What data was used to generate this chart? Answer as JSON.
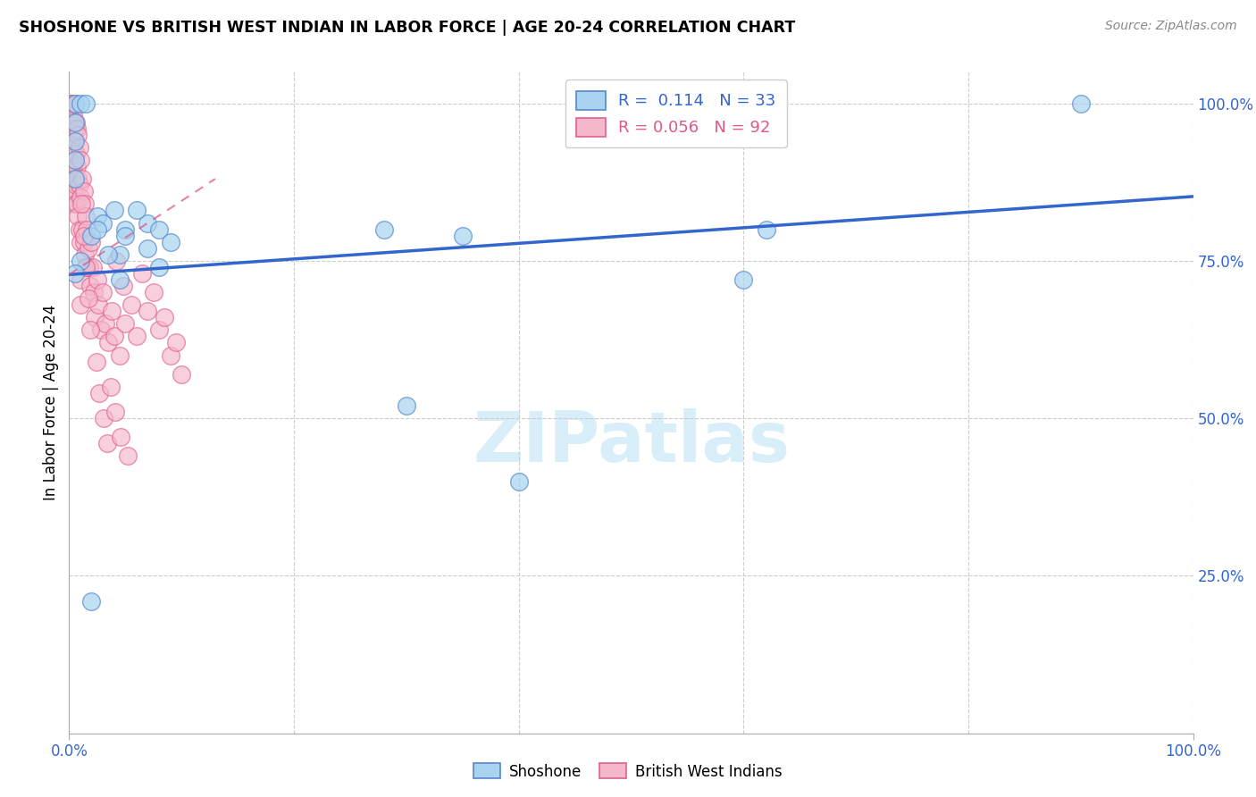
{
  "title": "SHOSHONE VS BRITISH WEST INDIAN IN LABOR FORCE | AGE 20-24 CORRELATION CHART",
  "source": "Source: ZipAtlas.com",
  "ylabel": "In Labor Force | Age 20-24",
  "blue_R": "0.114",
  "blue_N": "33",
  "pink_R": "0.056",
  "pink_N": "92",
  "legend_label_blue": "Shoshone",
  "legend_label_pink": "British West Indians",
  "blue_color": "#a8d4f0",
  "pink_color": "#f5b8cb",
  "blue_edge_color": "#5588cc",
  "pink_edge_color": "#e06090",
  "blue_line_color": "#3366cc",
  "pink_line_color": "#e05888",
  "watermark_color": "#d8eef8",
  "grid_color": "#cccccc",
  "right_tick_color": "#3366cc",
  "xlim": [
    0.0,
    1.0
  ],
  "ylim": [
    0.0,
    1.05
  ],
  "blue_scatter_x": [
    0.005,
    0.005,
    0.005,
    0.005,
    0.005,
    0.01,
    0.01,
    0.015,
    0.02,
    0.025,
    0.03,
    0.04,
    0.045,
    0.05,
    0.07,
    0.08,
    0.09,
    0.05,
    0.06,
    0.07,
    0.08,
    0.025,
    0.035,
    0.045,
    0.28,
    0.35,
    0.3,
    0.6,
    0.62,
    0.9,
    0.4,
    0.005,
    0.02
  ],
  "blue_scatter_y": [
    1.0,
    0.97,
    0.94,
    0.91,
    0.88,
    1.0,
    0.75,
    1.0,
    0.79,
    0.82,
    0.81,
    0.83,
    0.76,
    0.8,
    0.81,
    0.8,
    0.78,
    0.79,
    0.83,
    0.77,
    0.74,
    0.8,
    0.76,
    0.72,
    0.8,
    0.79,
    0.52,
    0.72,
    0.8,
    1.0,
    0.4,
    0.73,
    0.21
  ],
  "pink_scatter_x": [
    0.001,
    0.001,
    0.001,
    0.001,
    0.001,
    0.002,
    0.002,
    0.002,
    0.002,
    0.002,
    0.003,
    0.003,
    0.003,
    0.003,
    0.003,
    0.004,
    0.004,
    0.004,
    0.004,
    0.005,
    0.005,
    0.005,
    0.005,
    0.005,
    0.006,
    0.006,
    0.006,
    0.007,
    0.007,
    0.007,
    0.008,
    0.008,
    0.008,
    0.009,
    0.009,
    0.009,
    0.01,
    0.01,
    0.01,
    0.01,
    0.01,
    0.012,
    0.012,
    0.013,
    0.013,
    0.014,
    0.014,
    0.015,
    0.015,
    0.016,
    0.017,
    0.018,
    0.019,
    0.02,
    0.021,
    0.022,
    0.023,
    0.025,
    0.026,
    0.028,
    0.03,
    0.032,
    0.035,
    0.038,
    0.04,
    0.042,
    0.045,
    0.048,
    0.05,
    0.055,
    0.06,
    0.065,
    0.07,
    0.075,
    0.08,
    0.085,
    0.09,
    0.095,
    0.1,
    0.011,
    0.013,
    0.015,
    0.017,
    0.019,
    0.024,
    0.027,
    0.031,
    0.034,
    0.037,
    0.041,
    0.046,
    0.052
  ],
  "pink_scatter_y": [
    1.0,
    1.0,
    0.97,
    0.94,
    0.91,
    1.0,
    0.97,
    0.94,
    0.91,
    0.88,
    1.0,
    0.97,
    0.93,
    0.89,
    0.85,
    0.98,
    0.94,
    0.9,
    0.86,
    1.0,
    0.96,
    0.92,
    0.88,
    0.84,
    0.97,
    0.92,
    0.87,
    0.96,
    0.9,
    0.84,
    0.95,
    0.88,
    0.82,
    0.93,
    0.87,
    0.8,
    0.91,
    0.85,
    0.78,
    0.72,
    0.68,
    0.88,
    0.8,
    0.86,
    0.78,
    0.84,
    0.76,
    0.82,
    0.74,
    0.8,
    0.77,
    0.74,
    0.71,
    0.78,
    0.74,
    0.7,
    0.66,
    0.72,
    0.68,
    0.64,
    0.7,
    0.65,
    0.62,
    0.67,
    0.63,
    0.75,
    0.6,
    0.71,
    0.65,
    0.68,
    0.63,
    0.73,
    0.67,
    0.7,
    0.64,
    0.66,
    0.6,
    0.62,
    0.57,
    0.84,
    0.79,
    0.74,
    0.69,
    0.64,
    0.59,
    0.54,
    0.5,
    0.46,
    0.55,
    0.51,
    0.47,
    0.44
  ],
  "blue_line_x": [
    0.0,
    1.0
  ],
  "blue_line_y": [
    0.728,
    0.852
  ],
  "pink_line_x": [
    0.0,
    0.13
  ],
  "pink_line_y": [
    0.728,
    0.88
  ],
  "ytick_vals": [
    0.25,
    0.5,
    0.75,
    1.0
  ],
  "ytick_labels": [
    "25.0%",
    "50.0%",
    "75.0%",
    "100.0%"
  ]
}
